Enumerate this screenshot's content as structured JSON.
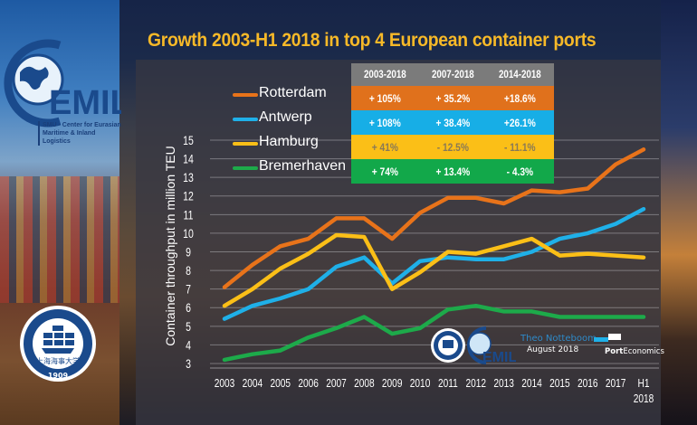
{
  "title": "Growth 2003-H1 2018 in top 4 European container ports",
  "branding": {
    "cemil_logo_text": "EMIL",
    "cemil_subtitle_line1": "SMU - Center for Eurasian",
    "cemil_subtitle_line2": "Maritime & Inland Logistics",
    "smu_name": "SHANGHAI MARITIME UNIVERSITY",
    "smu_chinese": "上海海事大学",
    "smu_year": "1909",
    "author": "Theo Notteboom",
    "date": "August 2018",
    "porteconomics_bold": "Port",
    "porteconomics_rest": "Economics"
  },
  "colors": {
    "rotterdam": "#e8731a",
    "antwerp": "#1fb0e8",
    "hamburg": "#fbbf17",
    "bremerhaven": "#1daa4a",
    "title": "#f7b928",
    "table_header": "#7b7b7b"
  },
  "growth_table": {
    "headers": [
      "2003-2018",
      "2007-2018",
      "2014-2018"
    ],
    "rows": [
      {
        "port": "Rotterdam",
        "values": [
          "+ 105%",
          "+ 35.2%",
          "+18.6%"
        ],
        "bg": "#e0711c",
        "fg": "#ffffff"
      },
      {
        "port": "Antwerp",
        "values": [
          "+ 108%",
          "+ 38.4%",
          "+26.1%"
        ],
        "bg": "#17aee6",
        "fg": "#ffffff"
      },
      {
        "port": "Hamburg",
        "values": [
          "+ 41%",
          "- 12.5%",
          "- 11.1%"
        ],
        "bg": "#fbbf17",
        "fg": "#8a7a55"
      },
      {
        "port": "Bremerhaven",
        "values": [
          "+ 74%",
          "+ 13.4%",
          "- 4.3%"
        ],
        "bg": "#12a84a",
        "fg": "#ffffff"
      }
    ]
  },
  "chart_data": {
    "type": "line",
    "title": "Growth 2003-H1 2018 in top 4 European container ports",
    "xlabel": "",
    "ylabel": "Container throughput in million TEU",
    "categories": [
      "2003",
      "2004",
      "2005",
      "2006",
      "2007",
      "2008",
      "2009",
      "2010",
      "2011",
      "2012",
      "2013",
      "2014",
      "2015",
      "2016",
      "2017",
      "H1 2018"
    ],
    "x_tick_labels": [
      [
        "2003"
      ],
      [
        "2004"
      ],
      [
        "2005"
      ],
      [
        "2006"
      ],
      [
        "2007"
      ],
      [
        "2008"
      ],
      [
        "2009"
      ],
      [
        "2010"
      ],
      [
        "2011"
      ],
      [
        "2012"
      ],
      [
        "2013"
      ],
      [
        "2014"
      ],
      [
        "2015"
      ],
      [
        "2016"
      ],
      [
        "2017"
      ],
      [
        "H1",
        "2018"
      ]
    ],
    "ylim": [
      3,
      15
    ],
    "yticks": [
      3,
      4,
      5,
      6,
      7,
      8,
      9,
      10,
      11,
      12,
      13,
      14,
      15
    ],
    "grid": true,
    "legend": "top-left",
    "series": [
      {
        "name": "Rotterdam",
        "color": "#e8731a",
        "values": [
          7.1,
          8.3,
          9.3,
          9.7,
          10.8,
          10.8,
          9.7,
          11.1,
          11.9,
          11.9,
          11.6,
          12.3,
          12.2,
          12.4,
          13.7,
          14.5
        ]
      },
      {
        "name": "Antwerp",
        "color": "#1fb0e8",
        "values": [
          5.4,
          6.1,
          6.5,
          7.0,
          8.2,
          8.7,
          7.3,
          8.5,
          8.7,
          8.6,
          8.6,
          9.0,
          9.7,
          10.0,
          10.5,
          11.3
        ]
      },
      {
        "name": "Hamburg",
        "color": "#fbbf17",
        "values": [
          6.1,
          7.0,
          8.1,
          8.9,
          9.9,
          9.8,
          7.0,
          7.9,
          9.0,
          8.9,
          9.3,
          9.7,
          8.8,
          8.9,
          8.8,
          8.7
        ]
      },
      {
        "name": "Bremerhaven",
        "color": "#1daa4a",
        "values": [
          3.2,
          3.5,
          3.7,
          4.4,
          4.9,
          5.5,
          4.6,
          4.9,
          5.9,
          6.1,
          5.8,
          5.8,
          5.5,
          5.5,
          5.5,
          5.5
        ]
      }
    ]
  }
}
